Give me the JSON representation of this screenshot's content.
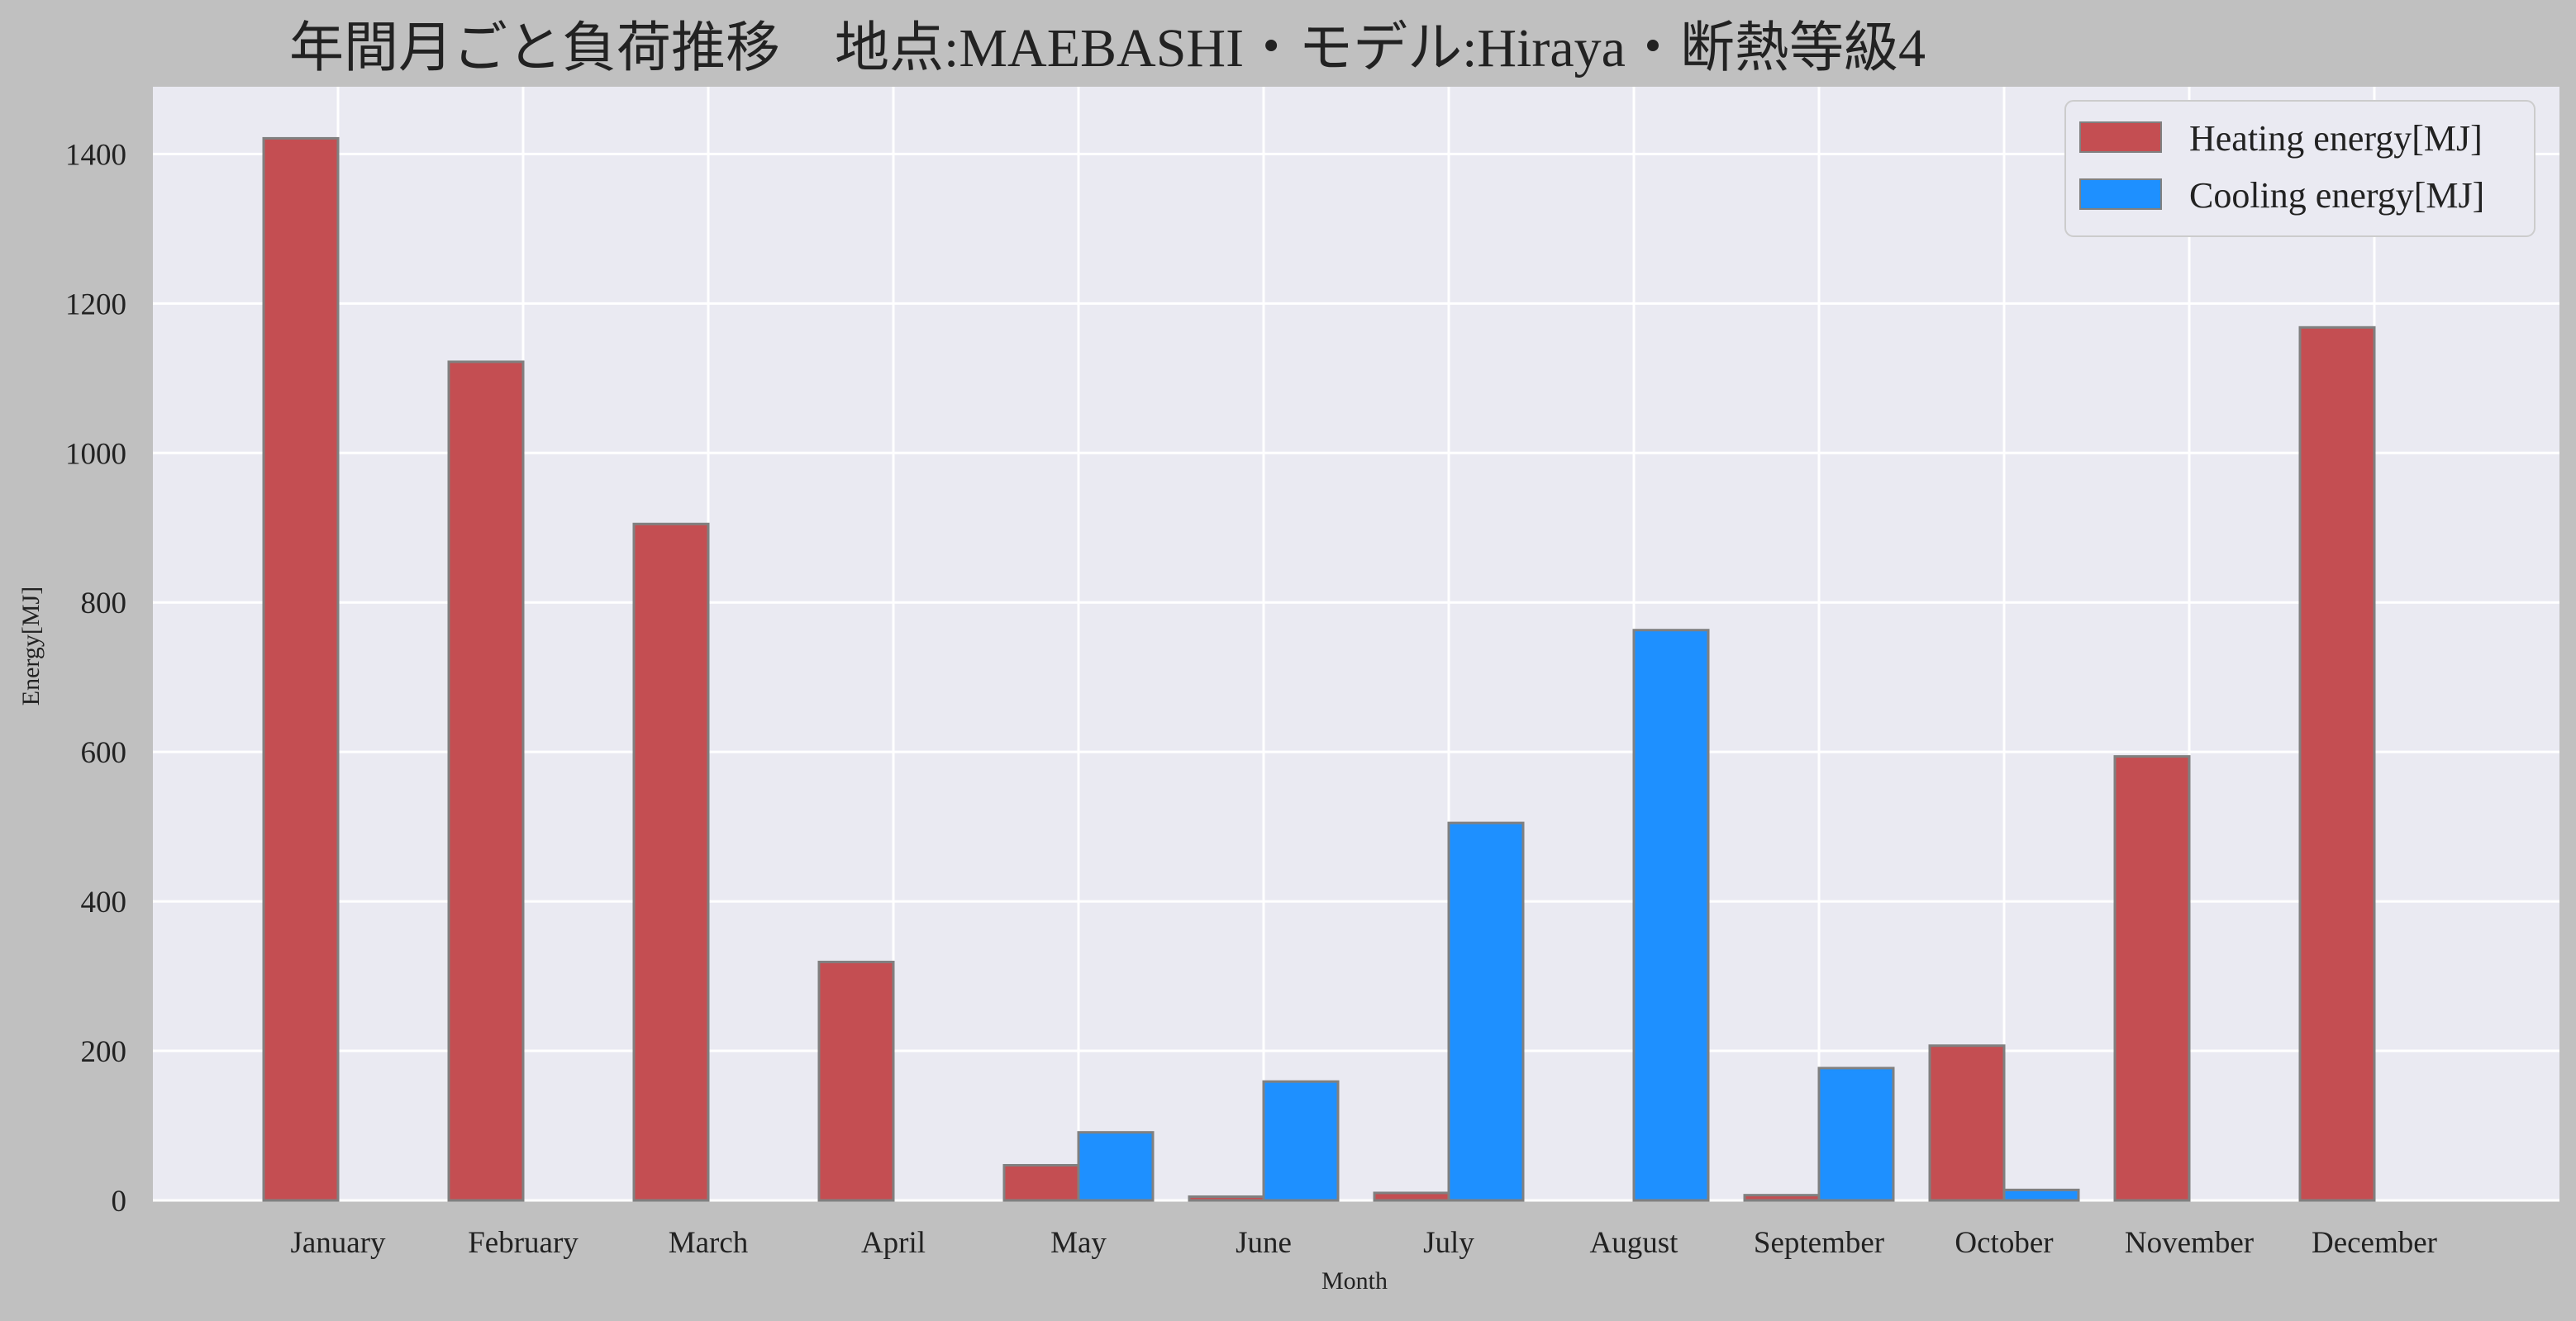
{
  "chart_data": {
    "type": "bar",
    "title": "年間月ごと負荷推移　地点:MAEBASHI・モデル:Hiraya・断熱等級4",
    "xlabel": "Month",
    "ylabel": "Energy[MJ]",
    "categories": [
      "January",
      "February",
      "March",
      "April",
      "May",
      "June",
      "July",
      "August",
      "September",
      "October",
      "November",
      "December"
    ],
    "series": [
      {
        "name": "Heating energy[MJ]",
        "color": "#c44e52",
        "values": [
          1421,
          1122,
          905,
          319,
          47,
          5,
          10,
          0,
          7,
          207,
          594,
          1168
        ]
      },
      {
        "name": "Cooling energy[MJ]",
        "color": "#1e90ff",
        "values": [
          0,
          0,
          0,
          0,
          91,
          159,
          505,
          763,
          177,
          14,
          0,
          0
        ]
      }
    ],
    "ylim": [
      0,
      1490
    ],
    "yticks": [
      0,
      200,
      400,
      600,
      800,
      1000,
      1200,
      1400
    ],
    "grid": true,
    "legend_position": "top-right",
    "plot_background": "#eaeaf2",
    "figure_background": "#c0c0c0",
    "bar_edge_color": "#808080"
  }
}
